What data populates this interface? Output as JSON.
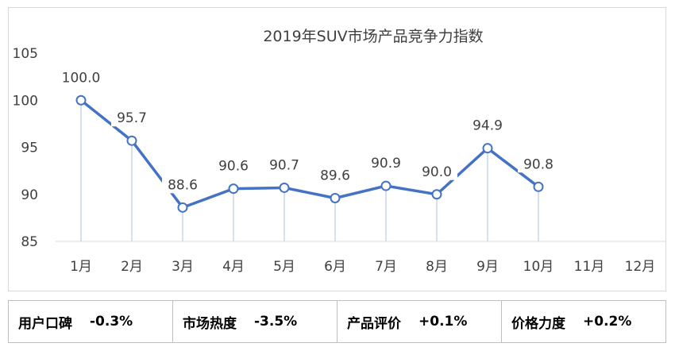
{
  "chart_data": {
    "type": "line",
    "title": "2019年SUV市场产品竞争力指数",
    "categories": [
      "1月",
      "2月",
      "3月",
      "4月",
      "5月",
      "6月",
      "7月",
      "8月",
      "9月",
      "10月",
      "11月",
      "12月"
    ],
    "series": [
      {
        "values": [
          100.0,
          95.7,
          88.6,
          90.6,
          90.7,
          89.6,
          90.9,
          90.0,
          94.9,
          90.8,
          null,
          null
        ]
      }
    ],
    "data_labels": [
      "100.0",
      "95.7",
      "88.6",
      "90.6",
      "90.7",
      "89.6",
      "90.9",
      "90.0",
      "94.9",
      "90.8"
    ],
    "ylim": [
      85,
      105
    ],
    "yticks": [
      85,
      90,
      95,
      100,
      105
    ],
    "grid": false,
    "line_color": "#4472c4"
  },
  "stats": [
    {
      "label": "用户口碑",
      "value": "-0.3%"
    },
    {
      "label": "市场热度",
      "value": "-3.5%"
    },
    {
      "label": "产品评价",
      "value": "+0.1%"
    },
    {
      "label": "价格力度",
      "value": "+0.2%"
    }
  ]
}
